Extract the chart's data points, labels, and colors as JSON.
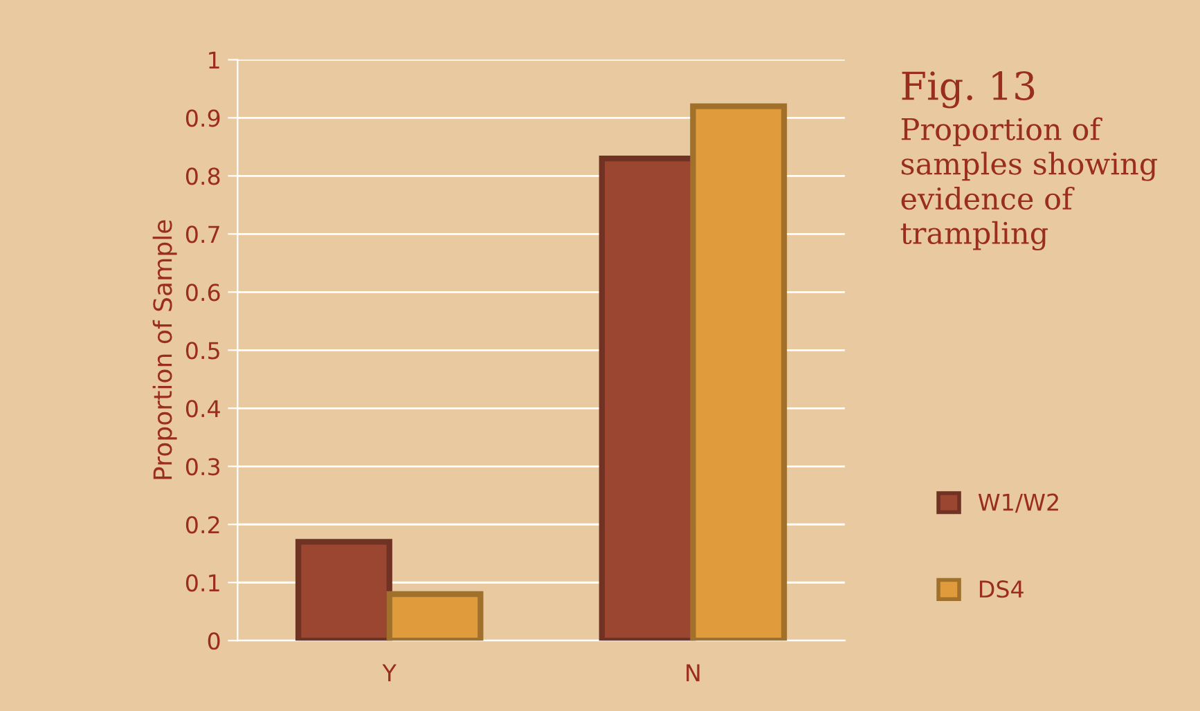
{
  "chart_data": {
    "type": "bar",
    "title": "Fig. 13",
    "subtitle": "Proportion of samples showing evidence of trampling",
    "ylabel": "Proportion of Sample",
    "categories": [
      "Y",
      "N"
    ],
    "series": [
      {
        "name": "W1/W2",
        "color": "#9a4630",
        "values": [
          0.17,
          0.83
        ]
      },
      {
        "name": "DS4",
        "color": "#e09c3c",
        "values": [
          0.08,
          0.92
        ]
      }
    ],
    "ylim": [
      0,
      1
    ],
    "yticks": [
      0,
      0.1,
      0.2,
      0.3,
      0.4,
      0.5,
      0.6,
      0.7,
      0.8,
      0.9,
      1
    ],
    "grid": "y",
    "legend": "right"
  }
}
